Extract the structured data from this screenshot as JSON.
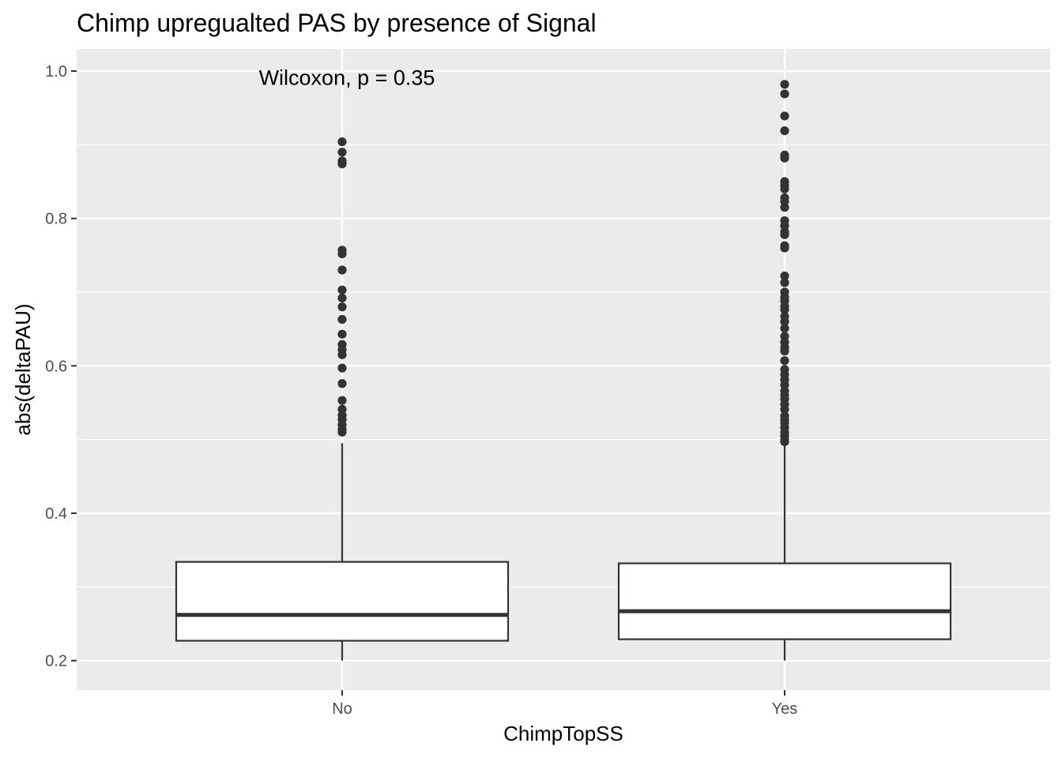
{
  "chart_data": {
    "type": "box",
    "title": "Chimp upregualted PAS by presence of Signal",
    "xlabel": "ChimpTopSS",
    "ylabel": "abs(deltaPAU)",
    "ylim": [
      0.16,
      1.03
    ],
    "yticks": [
      "0.2",
      "0.4",
      "0.6",
      "0.8",
      "1.0"
    ],
    "grid": true,
    "legend": "none",
    "annotation": {
      "text": "Wilcoxon, p = 0.35",
      "x": 1.5,
      "y": 0.99
    },
    "categories": [
      "No",
      "Yes"
    ],
    "boxes": [
      {
        "category": "No",
        "whisker_low": 0.2,
        "q1": 0.227,
        "median": 0.262,
        "q3": 0.334,
        "whisker_high": 0.495,
        "outliers": [
          0.904,
          0.89,
          0.878,
          0.874,
          0.757,
          0.752,
          0.73,
          0.703,
          0.692,
          0.68,
          0.663,
          0.643,
          0.629,
          0.622,
          0.615,
          0.597,
          0.576,
          0.553,
          0.541,
          0.533,
          0.527,
          0.52,
          0.514,
          0.51
        ]
      },
      {
        "category": "Yes",
        "whisker_low": 0.2,
        "q1": 0.229,
        "median": 0.267,
        "q3": 0.332,
        "whisker_high": 0.495,
        "outliers": [
          0.982,
          0.969,
          0.939,
          0.919,
          0.886,
          0.882,
          0.85,
          0.845,
          0.84,
          0.828,
          0.823,
          0.815,
          0.797,
          0.79,
          0.782,
          0.778,
          0.763,
          0.76,
          0.722,
          0.713,
          0.7,
          0.693,
          0.688,
          0.681,
          0.676,
          0.667,
          0.66,
          0.651,
          0.64,
          0.632,
          0.625,
          0.62,
          0.607,
          0.595,
          0.588,
          0.581,
          0.574,
          0.566,
          0.56,
          0.555,
          0.548,
          0.541,
          0.532,
          0.527,
          0.522,
          0.516,
          0.51,
          0.505,
          0.5,
          0.497
        ]
      }
    ],
    "colors": {
      "panel": "#ebebeb",
      "grid": "#ffffff",
      "box_fill": "#ffffff",
      "line": "#333333",
      "tick_text": "#4d4d4d"
    }
  }
}
